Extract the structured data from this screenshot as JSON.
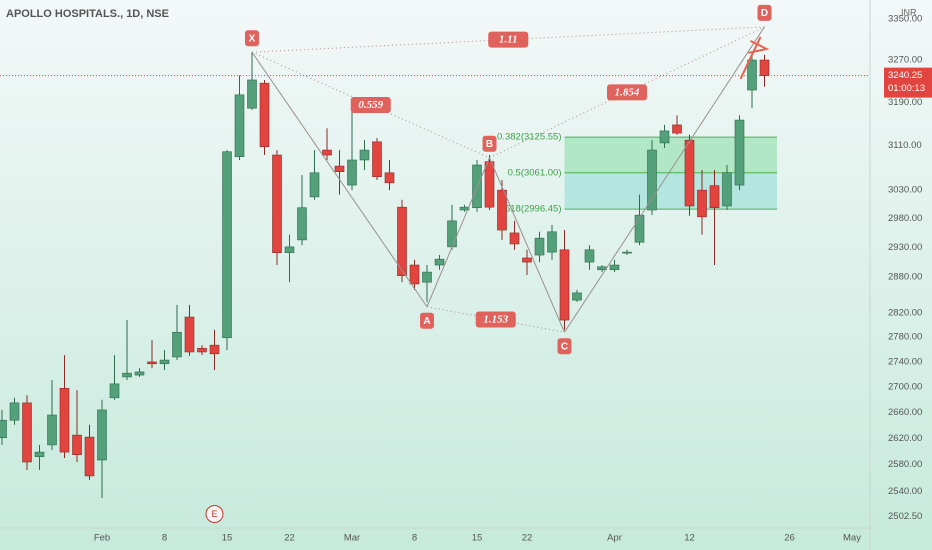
{
  "chart_data": {
    "type": "candlestick",
    "title": "APOLLO HOSPITALS., 1D, NSE",
    "currency": "INR",
    "countdown": "01:00:13",
    "log_scale": true,
    "grid": false,
    "up_color": "#53a07a",
    "down_color": "#e2453f",
    "categories": [
      null,
      null,
      null,
      null,
      null,
      null,
      null,
      null,
      "Feb",
      null,
      null,
      null,
      null,
      "8",
      null,
      null,
      null,
      null,
      "15",
      null,
      null,
      null,
      null,
      "22",
      null,
      null,
      null,
      null,
      "Mar",
      null,
      null,
      null,
      null,
      "8",
      null,
      null,
      null,
      null,
      "15",
      null,
      null,
      null,
      "22",
      null,
      null,
      null,
      null,
      null,
      null,
      "Apr",
      null,
      null,
      null,
      null,
      null,
      "12",
      null,
      null,
      null,
      null,
      null,
      null,
      null,
      "26",
      null,
      null,
      null,
      null,
      "May",
      null
    ],
    "open": [
      2621,
      2648,
      2675,
      2592,
      2610,
      2698,
      2625,
      2622,
      2587,
      2683,
      2716,
      2719,
      2740,
      2737,
      2748,
      2813,
      2762,
      2767,
      2779,
      3090,
      3179,
      3226,
      3093,
      2921,
      2943,
      3018,
      3102,
      3073,
      3039,
      3084,
      3117,
      3061,
      3000,
      2900,
      2871,
      2900,
      2931,
      2995,
      2999,
      3081,
      3030,
      2955,
      2912,
      2917,
      2922,
      2926,
      2841,
      2905,
      2892,
      2892,
      2921,
      2939,
      2995,
      3115,
      3148,
      3120,
      3030,
      3038,
      3002,
      3039,
      3213,
      3270,
      null,
      null,
      null,
      null,
      null,
      null,
      null,
      null
    ],
    "high": [
      2664,
      2683,
      2687,
      2610,
      2711,
      2751,
      2695,
      2641,
      2680,
      2751,
      2808,
      2730,
      2775,
      2759,
      2833,
      2833,
      2767,
      2792,
      3102,
      3241,
      3285,
      3232,
      3102,
      2952,
      3057,
      3102,
      3142,
      3102,
      3176,
      3120,
      3124,
      3084,
      3013,
      2909,
      2900,
      2917,
      3004,
      3004,
      3084,
      3093,
      3048,
      2976,
      2926,
      2957,
      2969,
      2960,
      2858,
      2934,
      2900,
      2909,
      2926,
      3022,
      3120,
      3148,
      3166,
      3130,
      3066,
      3066,
      3075,
      3166,
      3280,
      3280,
      null,
      null,
      null,
      null,
      null,
      null,
      null,
      null
    ],
    "low": [
      2610,
      2641,
      2572,
      2572,
      2602,
      2590,
      2584,
      2557,
      2530,
      2680,
      2711,
      2716,
      2730,
      2727,
      2743,
      2750,
      2751,
      2727,
      2759,
      3084,
      3176,
      3093,
      2900,
      2871,
      2934,
      3013,
      3084,
      3022,
      3030,
      3066,
      3048,
      3030,
      2871,
      2858,
      2838,
      2892,
      2926,
      2992,
      2992,
      2995,
      2943,
      2926,
      2883,
      2905,
      2909,
      2792,
      2838,
      2892,
      2888,
      2888,
      2917,
      2934,
      2986,
      3106,
      3130,
      2985,
      2952,
      2900,
      2995,
      3030,
      3179,
      3219,
      null,
      null,
      null,
      null,
      null,
      null,
      null,
      null
    ],
    "close": [
      2648,
      2675,
      2584,
      2599,
      2656,
      2599,
      2595,
      2563,
      2664,
      2705,
      2722,
      2724,
      2737,
      2743,
      2788,
      2756,
      2756,
      2753,
      3099,
      3204,
      3232,
      3108,
      2921,
      2931,
      2999,
      3061,
      3093,
      3063,
      3084,
      3102,
      3054,
      3043,
      2882,
      2868,
      2888,
      2910,
      2976,
      3000,
      3075,
      3000,
      2960,
      2936,
      2905,
      2946,
      2957,
      2808,
      2853,
      2926,
      2897,
      2900,
      2922,
      2986,
      3102,
      3137,
      3133,
      3002,
      2983,
      2999,
      3061,
      3157,
      3270,
      3240.25,
      null,
      null,
      null,
      null,
      null,
      null,
      null,
      null
    ],
    "ylim": [
      2486,
      3387
    ],
    "yticks": [
      {
        "value": 3350,
        "label": "3350.00"
      },
      {
        "value": 3270,
        "label": "3270.00"
      },
      {
        "value": 3190,
        "label": "3190.00"
      },
      {
        "value": 3110,
        "label": "3110.00"
      },
      {
        "value": 3030,
        "label": "3030.00"
      },
      {
        "value": 2980,
        "label": "2980.00"
      },
      {
        "value": 2930,
        "label": "2930.00"
      },
      {
        "value": 2880,
        "label": "2880.00"
      },
      {
        "value": 2820,
        "label": "2820.00"
      },
      {
        "value": 2780,
        "label": "2780.00"
      },
      {
        "value": 2740,
        "label": "2740.00"
      },
      {
        "value": 2700,
        "label": "2700.00"
      },
      {
        "value": 2660,
        "label": "2660.00"
      },
      {
        "value": 2620,
        "label": "2620.00"
      },
      {
        "value": 2580,
        "label": "2580.00"
      },
      {
        "value": 2540,
        "label": "2540.00"
      },
      {
        "value": 2502.5,
        "label": "2502.50"
      }
    ],
    "pattern": {
      "points": [
        {
          "label": "X",
          "at": 20,
          "price": 3285
        },
        {
          "label": "A",
          "at": 34,
          "price": 2830
        },
        {
          "label": "B",
          "at": 39,
          "price": 3088
        },
        {
          "label": "C",
          "at": 45,
          "price": 2788
        },
        {
          "label": "D",
          "at": 61,
          "price": 3334
        }
      ],
      "ratios": [
        {
          "between": [
            0,
            2
          ],
          "value": 0.559
        },
        {
          "between": [
            0,
            4
          ],
          "value": 1.11
        },
        {
          "between": [
            1,
            3
          ],
          "value": 1.153
        },
        {
          "between": [
            2,
            4
          ],
          "value": 1.854
        }
      ]
    },
    "fib": {
      "from": 45,
      "to": 62,
      "levels": [
        {
          "value": 3125.55,
          "label": "0.382(3125.55)"
        },
        {
          "value": 3061.0,
          "label": "0.5(3061.00)"
        },
        {
          "value": 2996.45,
          "label": "0.618(2996.45)"
        }
      ]
    },
    "events": [
      {
        "label": "E",
        "at": 17
      }
    ]
  }
}
